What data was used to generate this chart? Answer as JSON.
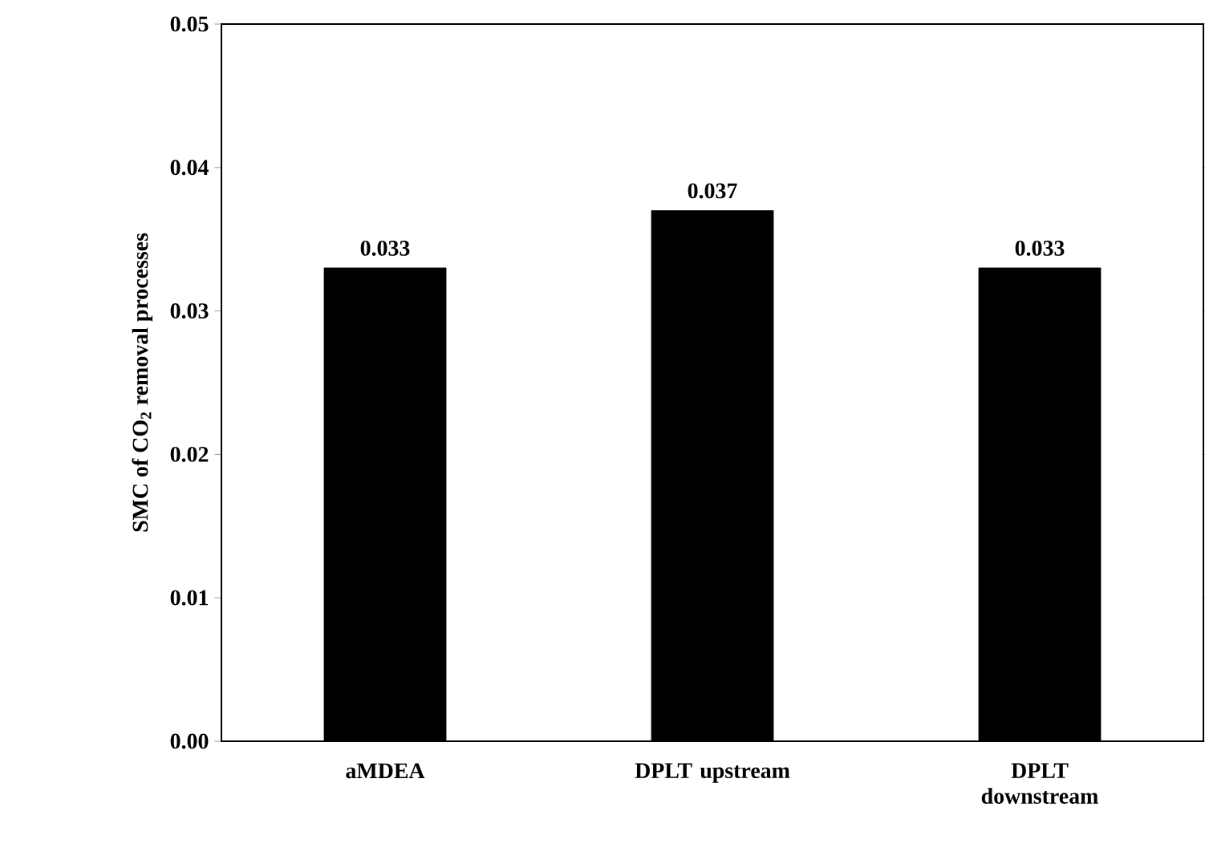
{
  "chart_data": {
    "type": "bar",
    "ylabel": "SMC of CO$_{2}$ removal processes",
    "categories": [
      "aMDEA",
      "DPLT upstream",
      "DPLT downstream"
    ],
    "values": [
      0.033,
      0.037,
      0.033
    ],
    "color": "#000000",
    "data_labels": true,
    "ylim": [
      0,
      0.05
    ],
    "yticks": [
      {
        "value": 0,
        "label": "0.00"
      },
      {
        "value": 0.01,
        "label": "0.01"
      },
      {
        "value": 0.02,
        "label": "0.02"
      },
      {
        "value": 0.03,
        "label": "0.03"
      },
      {
        "value": 0.04,
        "label": "0.04"
      },
      {
        "value": 0.05,
        "label": "0.05"
      }
    ],
    "grid": false
  }
}
